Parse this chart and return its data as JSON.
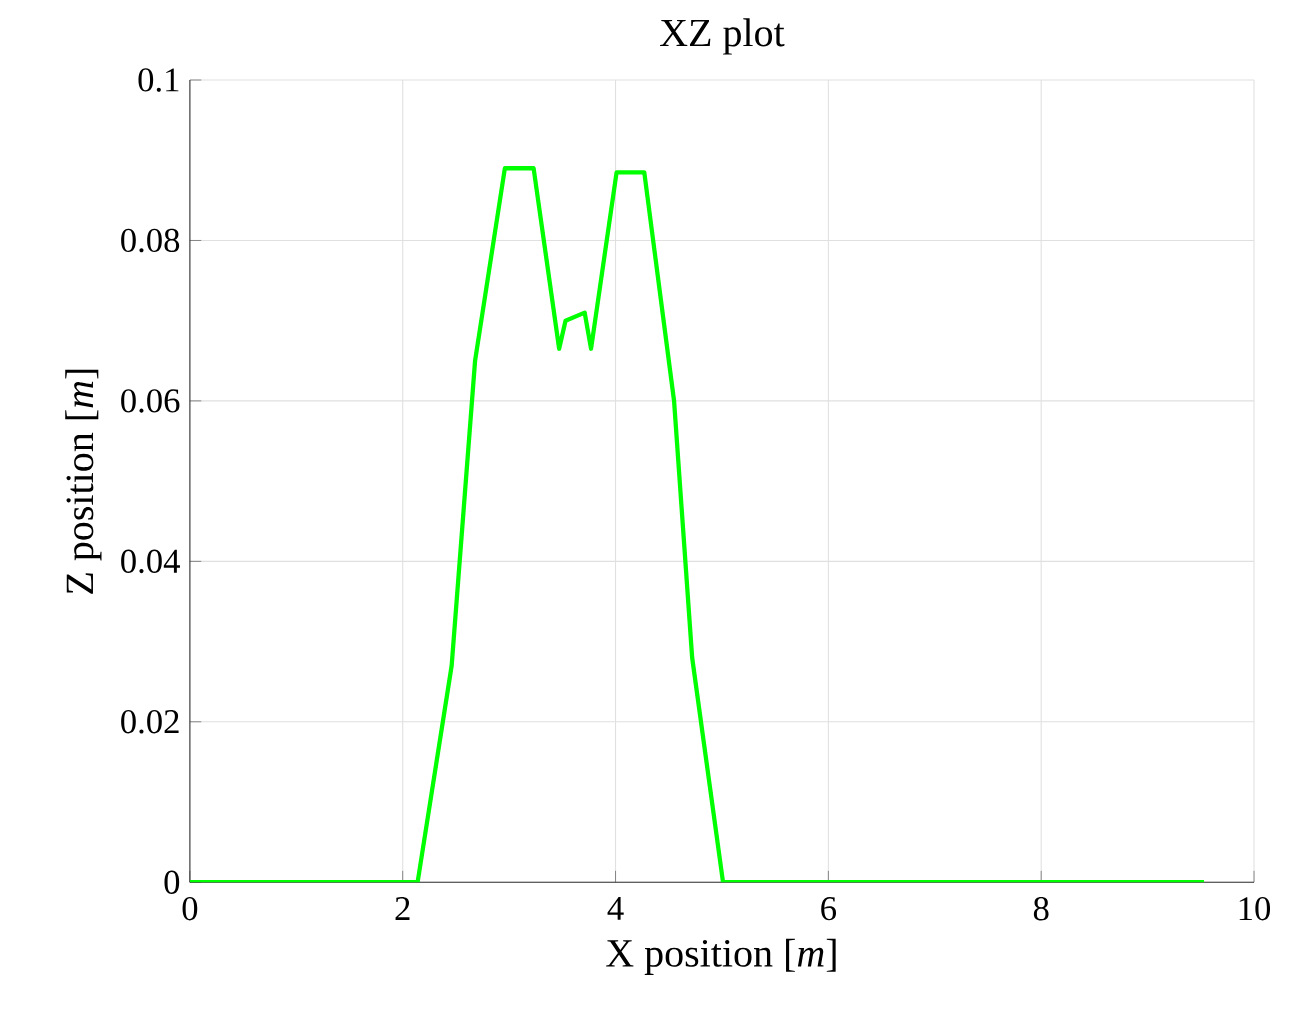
{
  "chart_data": {
    "type": "line",
    "title": "XZ plot",
    "xlabel": "X position  [*m*]",
    "ylabel": "Z position  [*m*]",
    "series": [
      {
        "color": "#00ff00",
        "x": [
          0,
          2.14,
          2.46,
          2.68,
          2.96,
          3.23,
          3.47,
          3.53,
          3.71,
          3.77,
          4.01,
          4.27,
          4.55,
          4.72,
          5.01,
          9.53
        ],
        "values": [
          0,
          0,
          0.027,
          0.065,
          0.089,
          0.089,
          0.0665,
          0.07,
          0.071,
          0.0665,
          0.0885,
          0.0885,
          0.06,
          0.028,
          0,
          0
        ]
      }
    ],
    "xlim": [
      0,
      10
    ],
    "ylim": [
      0,
      0.1
    ],
    "xticks": [
      0,
      2,
      4,
      6,
      8,
      10
    ],
    "yticks": [
      0,
      0.02,
      0.04,
      0.06,
      0.08,
      0.1
    ],
    "grid": true,
    "marker": "none",
    "line_style": "solid"
  }
}
